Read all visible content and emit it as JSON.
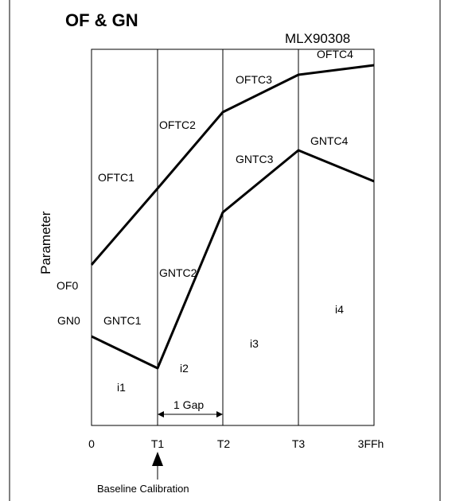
{
  "title": "OF & GN",
  "chip": "MLX90308",
  "y_axis_label": "Parameter",
  "x_ticks": [
    "0",
    "T1",
    "T2",
    "T3",
    "3FFh"
  ],
  "left_labels": {
    "of0": "OF0",
    "gn0": "GN0"
  },
  "ofc_labels": [
    "OFTC1",
    "OFTC2",
    "OFTC3",
    "OFTC4"
  ],
  "gnc_labels": [
    "GNTC1",
    "GNTC2",
    "GNTC3",
    "GNTC4"
  ],
  "intervals": [
    "i1",
    "i2",
    "i3",
    "i4"
  ],
  "gap_label": "1 Gap",
  "baseline_label": "Baseline Calibration"
}
